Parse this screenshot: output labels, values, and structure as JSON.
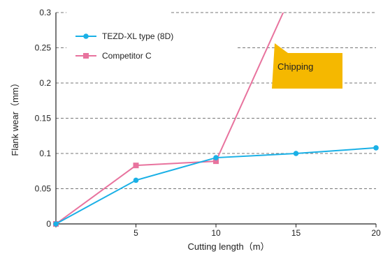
{
  "chart_data": {
    "type": "line",
    "x": [
      0,
      5,
      10,
      15,
      20
    ],
    "xlabel": "Cutting length（m）",
    "ylabel": "Flank wear（mm）",
    "xlim": [
      0,
      20
    ],
    "ylim": [
      0,
      0.3
    ],
    "x_ticks": [
      "0",
      "5",
      "10",
      "15",
      "20"
    ],
    "y_ticks": [
      "0",
      "0.05",
      "0.1",
      "0.15",
      "0.2",
      "0.25",
      "0.3"
    ],
    "grid": "horizontal dashed",
    "legend_position": "top-left",
    "series": [
      {
        "name": "TEZD-XL type (8D)",
        "marker": "circle",
        "color": "#1ab0e6",
        "points": [
          [
            0,
            0
          ],
          [
            5,
            0.062
          ],
          [
            10,
            0.094
          ],
          [
            15,
            0.1
          ],
          [
            20,
            0.108
          ]
        ]
      },
      {
        "name": "Competitor C",
        "marker": "square",
        "color": "#e8739e",
        "points": [
          [
            0,
            0
          ],
          [
            5,
            0.083
          ],
          [
            10,
            0.089
          ],
          [
            14.2,
            0.3
          ]
        ]
      }
    ],
    "annotation": {
      "text": "Chipping",
      "color": "#f5b800",
      "series": "Competitor C"
    }
  }
}
